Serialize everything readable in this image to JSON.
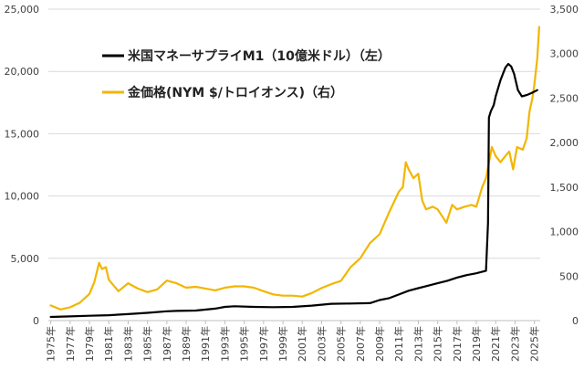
{
  "chart_data": {
    "type": "line",
    "title": "",
    "xlabel": "",
    "ylabel_left": "",
    "ylabel_right": "",
    "x_range": [
      1974.75,
      2025.6
    ],
    "ylim_left": [
      0,
      25000
    ],
    "ylim_right": [
      0,
      3500
    ],
    "y_ticks_left": [
      "0",
      "5,000",
      "10,000",
      "15,000",
      "20,000",
      "25,000"
    ],
    "y_ticks_right": [
      "0",
      "500",
      "1,000",
      "1,500",
      "2,000",
      "2,500",
      "3,000",
      "3,500"
    ],
    "x_ticks": [
      "1975年",
      "1977年",
      "1979年",
      "1981年",
      "1983年",
      "1985年",
      "1987年",
      "1989年",
      "1991年",
      "1993年",
      "1995年",
      "1997年",
      "1999年",
      "2001年",
      "2003年",
      "2005年",
      "2007年",
      "2009年",
      "2011年",
      "2013年",
      "2015年",
      "2017年",
      "2019年",
      "2021年",
      "2023年",
      "2025年"
    ],
    "grid": "horizontal",
    "legend_position": "top-left",
    "series": [
      {
        "name": "米国マネーサプライM1（10億米ドル）（左）",
        "axis": "left",
        "color": "#000000",
        "x": [
          1975,
          1977,
          1979,
          1981,
          1983,
          1985,
          1987,
          1988,
          1990,
          1992,
          1993,
          1994,
          1996,
          1998,
          2000,
          2002,
          2004,
          2006,
          2008,
          2009,
          2010,
          2011,
          2012,
          2013,
          2014,
          2015,
          2016,
          2017,
          2018,
          2019,
          2020.0,
          2020.2,
          2020.3,
          2020.5,
          2020.8,
          2021.0,
          2021.5,
          2022.0,
          2022.3,
          2022.6,
          2022.9,
          2023.3,
          2023.7,
          2024.2,
          2024.8,
          2025.3
        ],
        "y": [
          290,
          340,
          390,
          430,
          520,
          620,
          750,
          780,
          810,
          960,
          1100,
          1150,
          1100,
          1080,
          1100,
          1200,
          1350,
          1370,
          1400,
          1650,
          1800,
          2100,
          2400,
          2600,
          2800,
          3000,
          3200,
          3450,
          3650,
          3800,
          4000,
          7800,
          16300,
          16800,
          17300,
          18000,
          19300,
          20300,
          20600,
          20400,
          19800,
          18500,
          18000,
          18100,
          18300,
          18500
        ]
      },
      {
        "name": "金価格(NYM $/トロイオンス)（右）",
        "axis": "right",
        "color": "#F2B600",
        "x": [
          1975,
          1976,
          1977,
          1978,
          1979,
          1979.5,
          1980.0,
          1980.3,
          1980.7,
          1981,
          1982,
          1983,
          1984,
          1985,
          1986,
          1987,
          1988,
          1989,
          1990,
          1991,
          1992,
          1993,
          1994,
          1995,
          1996,
          1997,
          1998,
          1999,
          2000,
          2001,
          2002,
          2003,
          2004,
          2005,
          2006,
          2007,
          2008,
          2009,
          2010,
          2011.0,
          2011.4,
          2011.7,
          2012.0,
          2012.5,
          2013.0,
          2013.4,
          2013.8,
          2014.5,
          2015.0,
          2015.9,
          2016.5,
          2017.0,
          2017.8,
          2018.5,
          2019.0,
          2019.6,
          2020.0,
          2020.6,
          2021.0,
          2021.5,
          2022.0,
          2022.4,
          2022.8,
          2023.2,
          2023.8,
          2024.2,
          2024.5,
          2024.8,
          2025.0,
          2025.3,
          2025.5
        ],
        "y": [
          170,
          125,
          150,
          200,
          300,
          430,
          650,
          580,
          600,
          460,
          330,
          420,
          360,
          320,
          350,
          450,
          420,
          370,
          380,
          360,
          340,
          370,
          385,
          385,
          370,
          330,
          295,
          280,
          280,
          270,
          310,
          365,
          410,
          445,
          600,
          700,
          870,
          970,
          1220,
          1450,
          1500,
          1780,
          1700,
          1600,
          1650,
          1350,
          1250,
          1280,
          1250,
          1100,
          1300,
          1250,
          1280,
          1300,
          1280,
          1500,
          1600,
          1950,
          1850,
          1780,
          1850,
          1900,
          1700,
          1950,
          1920,
          2050,
          2350,
          2500,
          2650,
          2950,
          3300
        ]
      }
    ]
  }
}
